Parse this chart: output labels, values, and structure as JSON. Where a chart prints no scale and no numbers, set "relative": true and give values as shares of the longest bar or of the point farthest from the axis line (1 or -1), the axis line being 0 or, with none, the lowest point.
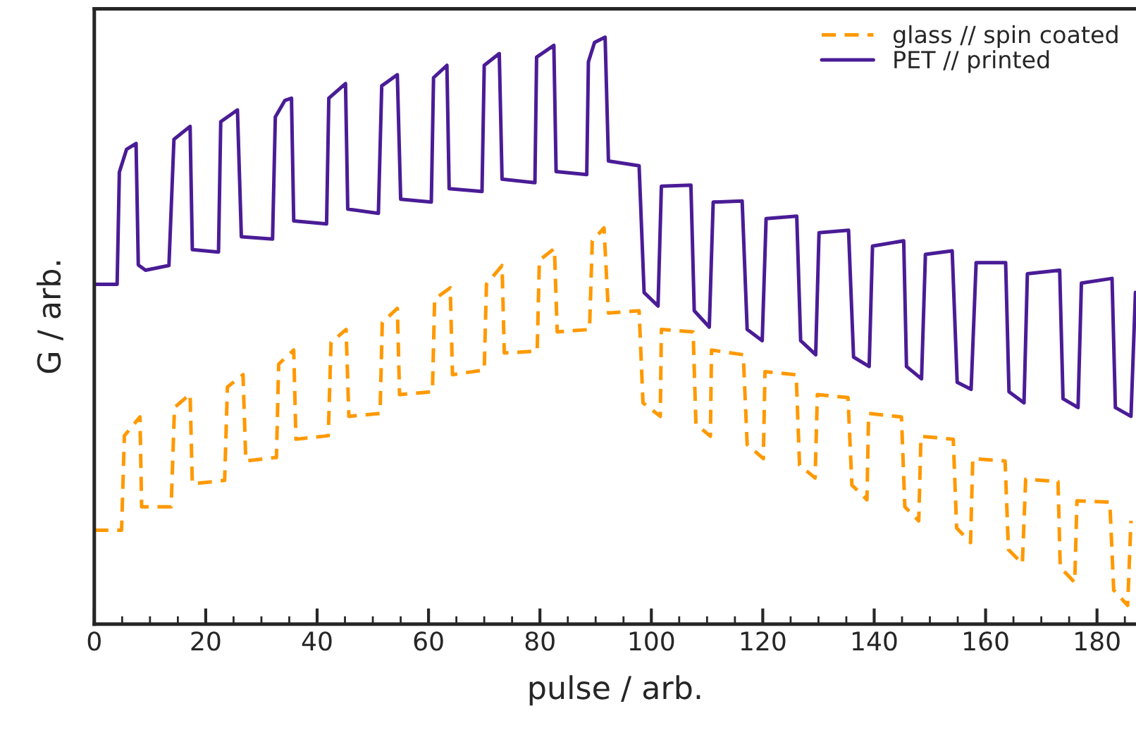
{
  "chart_data": {
    "type": "line",
    "xlabel": "pulse / arb.",
    "ylabel": "G / arb.",
    "relative": true,
    "legend": "top right",
    "grid": false,
    "marker": "none",
    "xlim": [
      0,
      187
    ],
    "xticks": [
      0,
      {
        "value": 5,
        "label": null
      },
      {
        "value": 10,
        "label": null
      },
      {
        "value": 15,
        "label": null
      },
      20,
      {
        "value": 25,
        "label": null
      },
      {
        "value": 30,
        "label": null
      },
      {
        "value": 35,
        "label": null
      },
      40,
      {
        "value": 45,
        "label": null
      },
      {
        "value": 50,
        "label": null
      },
      {
        "value": 55,
        "label": null
      },
      60,
      {
        "value": 65,
        "label": null
      },
      {
        "value": 70,
        "label": null
      },
      {
        "value": 75,
        "label": null
      },
      80,
      {
        "value": 85,
        "label": null
      },
      {
        "value": 90,
        "label": null
      },
      {
        "value": 95,
        "label": null
      },
      100,
      {
        "value": 105,
        "label": null
      },
      {
        "value": 110,
        "label": null
      },
      {
        "value": 115,
        "label": null
      },
      120,
      {
        "value": 125,
        "label": null
      },
      {
        "value": 130,
        "label": null
      },
      {
        "value": 135,
        "label": null
      },
      140,
      {
        "value": 145,
        "label": null
      },
      {
        "value": 150,
        "label": null
      },
      {
        "value": 155,
        "label": null
      },
      160,
      {
        "value": 165,
        "label": null
      },
      {
        "value": 170,
        "label": null
      },
      {
        "value": 175,
        "label": null
      },
      180,
      {
        "value": 185,
        "label": null
      }
    ],
    "series": [
      {
        "name": "glass // spin coated",
        "color": "#ff9900",
        "line_style": "dashed",
        "x": [
          0,
          4.9,
          5.4,
          8.2,
          8.5,
          13.8,
          14.4,
          17.2,
          17.6,
          23.4,
          23.9,
          26.7,
          27.2,
          32.7,
          33.1,
          35.8,
          36.2,
          42.0,
          42.5,
          45.2,
          45.7,
          51.3,
          51.7,
          54.4,
          54.8,
          60.7,
          61.1,
          63.9,
          64.3,
          70.0,
          70.4,
          73.2,
          73.6,
          79.5,
          79.9,
          82.6,
          83.1,
          88.9,
          89.4,
          91.5,
          92.3,
          97.8,
          98.5,
          101.6,
          101.8,
          107.5,
          108.0,
          110.6,
          110.8,
          116.5,
          117.2,
          120.1,
          120.4,
          126.0,
          126.6,
          129.4,
          129.8,
          135.3,
          136.0,
          138.7,
          139.0,
          144.9,
          145.5,
          148.0,
          148.4,
          154.2,
          154.8,
          157.3,
          157.7,
          163.5,
          164.1,
          166.6,
          167.2,
          173.0,
          173.4,
          176.0,
          176.4,
          182.3,
          183.0,
          185.5,
          186.1
        ],
        "values": [
          0.16,
          0.16,
          0.321,
          0.353,
          0.2,
          0.2,
          0.369,
          0.392,
          0.239,
          0.245,
          0.404,
          0.425,
          0.278,
          0.284,
          0.443,
          0.467,
          0.315,
          0.321,
          0.48,
          0.502,
          0.354,
          0.359,
          0.514,
          0.538,
          0.391,
          0.396,
          0.554,
          0.573,
          0.425,
          0.433,
          0.579,
          0.611,
          0.462,
          0.465,
          0.62,
          0.64,
          0.498,
          0.502,
          0.653,
          0.675,
          0.53,
          0.534,
          0.377,
          0.354,
          0.502,
          0.498,
          0.341,
          0.32,
          0.467,
          0.459,
          0.306,
          0.282,
          0.43,
          0.425,
          0.271,
          0.249,
          0.391,
          0.386,
          0.237,
          0.212,
          0.359,
          0.353,
          0.2,
          0.176,
          0.32,
          0.315,
          0.164,
          0.139,
          0.282,
          0.278,
          0.127,
          0.103,
          0.247,
          0.243,
          0.097,
          0.071,
          0.21,
          0.208,
          0.058,
          0.032,
          0.176
        ]
      },
      {
        "name": "PET // printed",
        "color": "#4a1c96",
        "line_style": "solid",
        "x": [
          0,
          4.1,
          4.5,
          5.8,
          7.5,
          7.9,
          9.2,
          13.4,
          14.3,
          17.2,
          17.6,
          22.3,
          22.7,
          25.7,
          26.4,
          32.0,
          32.5,
          34.2,
          35.4,
          35.8,
          41.7,
          42.1,
          45.1,
          45.5,
          51.0,
          51.6,
          54.4,
          55.0,
          60.5,
          60.9,
          63.3,
          63.7,
          69.6,
          70.0,
          72.7,
          73.2,
          79.1,
          79.4,
          82.5,
          82.9,
          88.4,
          88.7,
          89.8,
          91.7,
          92.3,
          97.8,
          98.7,
          101.2,
          101.8,
          107.1,
          107.7,
          110.4,
          111.1,
          116.3,
          117.2,
          119.9,
          120.6,
          126.1,
          126.8,
          129.5,
          130.1,
          135.4,
          136.3,
          139.1,
          139.7,
          145.3,
          145.8,
          148.5,
          149.2,
          154.0,
          154.9,
          157.4,
          158.3,
          163.6,
          164.2,
          166.9,
          167.5,
          173.3,
          173.9,
          176.6,
          177.2,
          182.7,
          183.3,
          186.1,
          186.9
        ],
        "values": [
          0.579,
          0.579,
          0.77,
          0.809,
          0.819,
          0.612,
          0.603,
          0.611,
          0.826,
          0.848,
          0.638,
          0.634,
          0.856,
          0.876,
          0.66,
          0.656,
          0.864,
          0.892,
          0.896,
          0.687,
          0.682,
          0.896,
          0.921,
          0.707,
          0.7,
          0.917,
          0.936,
          0.724,
          0.719,
          0.931,
          0.952,
          0.742,
          0.737,
          0.952,
          0.972,
          0.758,
          0.752,
          0.966,
          0.986,
          0.771,
          0.766,
          0.958,
          0.991,
          1.0,
          0.789,
          0.781,
          0.565,
          0.542,
          0.746,
          0.748,
          0.534,
          0.506,
          0.719,
          0.721,
          0.502,
          0.483,
          0.691,
          0.695,
          0.483,
          0.459,
          0.667,
          0.671,
          0.455,
          0.439,
          0.644,
          0.653,
          0.439,
          0.418,
          0.63,
          0.636,
          0.412,
          0.4,
          0.616,
          0.616,
          0.396,
          0.377,
          0.597,
          0.603,
          0.384,
          0.369,
          0.581,
          0.589,
          0.369,
          0.354,
          0.565
        ]
      }
    ]
  }
}
